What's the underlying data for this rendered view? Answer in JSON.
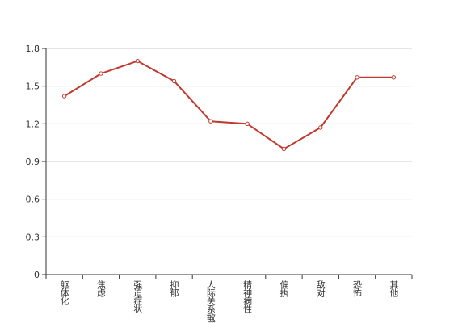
{
  "chart_data": {
    "type": "line",
    "categories": [
      "躯体化",
      "焦虑",
      "强迫症状",
      "抑郁",
      "人际关系敏感",
      "精神病性",
      "偏执",
      "敌对",
      "恐怖",
      "其他"
    ],
    "series": [
      {
        "color": "#c0392f",
        "values": [
          1.42,
          1.6,
          1.7,
          1.54,
          1.22,
          1.2,
          1.0,
          1.17,
          1.57,
          1.57
        ]
      }
    ],
    "ylim": [
      0,
      1.8
    ],
    "yticks": [
      0,
      0.3,
      0.6,
      0.9,
      1.2,
      1.5,
      1.8
    ],
    "grid": true
  }
}
